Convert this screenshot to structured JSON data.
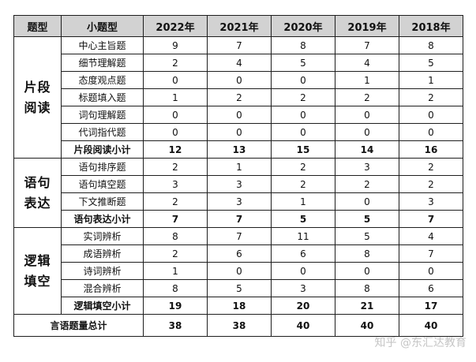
{
  "headers": [
    "题型",
    "小题型",
    "2022年",
    "2021年",
    "2020年",
    "2019年",
    "2018年"
  ],
  "groups": [
    {
      "category": [
        "片段",
        "阅读"
      ],
      "rows": [
        {
          "name": "中心主旨题",
          "values": [
            "9",
            "7",
            "8",
            "7",
            "8"
          ]
        },
        {
          "name": "细节理解题",
          "values": [
            "2",
            "4",
            "5",
            "4",
            "5"
          ]
        },
        {
          "name": "态度观点题",
          "values": [
            "0",
            "0",
            "0",
            "1",
            "1"
          ]
        },
        {
          "name": "标题填入题",
          "values": [
            "1",
            "2",
            "2",
            "2",
            "2"
          ]
        },
        {
          "name": "词句理解题",
          "values": [
            "0",
            "0",
            "0",
            "0",
            "0"
          ]
        },
        {
          "name": "代词指代题",
          "values": [
            "0",
            "0",
            "0",
            "0",
            "0"
          ]
        }
      ],
      "subtotal": {
        "name": "片段阅读小计",
        "values": [
          "12",
          "13",
          "15",
          "14",
          "16"
        ]
      }
    },
    {
      "category": [
        "语句",
        "表达"
      ],
      "rows": [
        {
          "name": "语句排序题",
          "values": [
            "2",
            "1",
            "2",
            "3",
            "2"
          ]
        },
        {
          "name": "语句填空题",
          "values": [
            "3",
            "3",
            "2",
            "2",
            "2"
          ]
        },
        {
          "name": "下文推断题",
          "values": [
            "2",
            "3",
            "1",
            "0",
            "3"
          ]
        }
      ],
      "subtotal": {
        "name": "语句表达小计",
        "values": [
          "7",
          "7",
          "5",
          "5",
          "7"
        ]
      }
    },
    {
      "category": [
        "逻辑",
        "填空"
      ],
      "rows": [
        {
          "name": "实词辨析",
          "values": [
            "8",
            "7",
            "11",
            "5",
            "4"
          ]
        },
        {
          "name": "成语辨析",
          "values": [
            "2",
            "6",
            "6",
            "8",
            "7"
          ]
        },
        {
          "name": "诗词辨析",
          "values": [
            "1",
            "0",
            "0",
            "0",
            "0"
          ]
        },
        {
          "name": "混合辨析",
          "values": [
            "8",
            "5",
            "3",
            "8",
            "6"
          ]
        }
      ],
      "subtotal": {
        "name": "逻辑填空小计",
        "values": [
          "19",
          "18",
          "20",
          "21",
          "17"
        ]
      }
    }
  ],
  "total": {
    "name": "言语题量总计",
    "values": [
      "38",
      "38",
      "40",
      "40",
      "40"
    ]
  },
  "watermark": "知乎 @东汇达教育"
}
